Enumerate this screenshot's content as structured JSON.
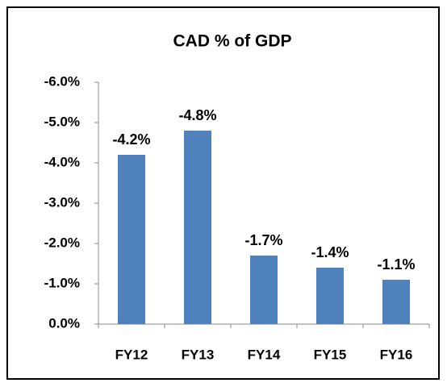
{
  "chart_data": {
    "type": "bar",
    "title": "CAD % of GDP",
    "categories": [
      "FY12",
      "FY13",
      "FY14",
      "FY15",
      "FY16"
    ],
    "values": [
      -4.2,
      -4.8,
      -1.7,
      -1.4,
      -1.1
    ],
    "value_labels": [
      "-4.2%",
      "-4.8%",
      "-1.7%",
      "-1.4%",
      "-1.1%"
    ],
    "color": "#4f81bd",
    "ylim": [
      0,
      -6
    ],
    "yticks": [
      {
        "value": 0,
        "label": "0.0%"
      },
      {
        "value": -1,
        "label": "-1.0%"
      },
      {
        "value": -2,
        "label": "-2.0%"
      },
      {
        "value": -3,
        "label": "-3.0%"
      },
      {
        "value": -4,
        "label": "-4.0%"
      },
      {
        "value": -5,
        "label": "-5.0%"
      },
      {
        "value": -6,
        "label": "-6.0%"
      }
    ],
    "grid": false
  }
}
